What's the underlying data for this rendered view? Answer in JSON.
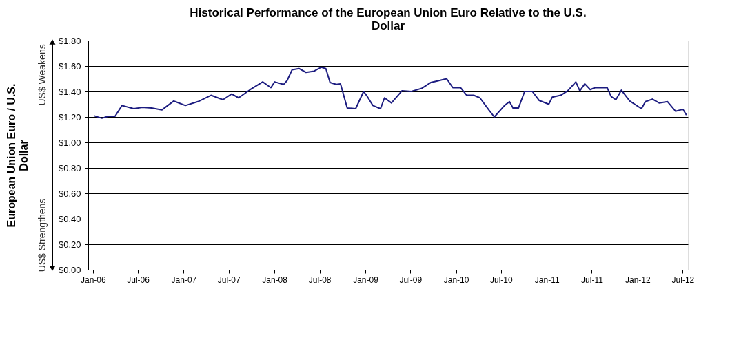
{
  "chart_data": {
    "type": "line",
    "title": "Historical Performance of the European Union Euro Relative to the U.S. Dollar",
    "ylabel": "European Union Euro / U.S. Dollar",
    "annotations": [
      "US$ Weakens",
      "US$ Strengthens"
    ],
    "x": [
      "2006-01-04",
      "2006-02-06",
      "2006-03-03",
      "2006-03-31",
      "2006-04-28",
      "2006-06-14",
      "2006-07-19",
      "2006-08-25",
      "2006-10-05",
      "2006-11-22",
      "2007-01-08",
      "2007-02-27",
      "2007-04-21",
      "2007-06-08",
      "2007-07-13",
      "2007-08-10",
      "2007-09-26",
      "2007-11-15",
      "2007-12-18",
      "2008-01-02",
      "2008-02-07",
      "2008-02-21",
      "2008-03-12",
      "2008-04-09",
      "2008-05-07",
      "2008-06-09",
      "2008-07-07",
      "2008-07-26",
      "2008-08-12",
      "2008-09-06",
      "2008-09-23",
      "2008-10-20",
      "2008-11-23",
      "2008-12-25",
      "2009-01-09",
      "2009-01-31",
      "2009-03-03",
      "2009-03-19",
      "2009-04-16",
      "2009-05-28",
      "2009-07-05",
      "2009-08-16",
      "2009-09-21",
      "2009-10-24",
      "2009-11-24",
      "2009-12-19",
      "2010-01-19",
      "2010-02-13",
      "2010-03-13",
      "2010-04-07",
      "2010-05-13",
      "2010-06-04",
      "2010-07-15",
      "2010-08-04",
      "2010-08-18",
      "2010-09-09",
      "2010-10-04",
      "2010-11-04",
      "2010-12-01",
      "2011-01-09",
      "2011-01-23",
      "2011-02-26",
      "2011-03-26",
      "2011-04-28",
      "2011-05-14",
      "2011-06-03",
      "2011-06-25",
      "2011-07-14",
      "2011-09-01",
      "2011-09-17",
      "2011-10-06",
      "2011-10-28",
      "2011-12-01",
      "2012-01-17",
      "2012-02-02",
      "2012-03-01",
      "2012-03-28",
      "2012-05-01",
      "2012-06-02",
      "2012-07-02",
      "2012-07-16"
    ],
    "series": [
      {
        "color": "#1c1c80",
        "values": [
          1.21,
          1.19,
          1.205,
          1.205,
          1.29,
          1.265,
          1.275,
          1.27,
          1.255,
          1.325,
          1.29,
          1.32,
          1.37,
          1.335,
          1.38,
          1.35,
          1.415,
          1.475,
          1.43,
          1.475,
          1.455,
          1.485,
          1.57,
          1.58,
          1.55,
          1.56,
          1.59,
          1.58,
          1.47,
          1.455,
          1.46,
          1.27,
          1.265,
          1.4,
          1.36,
          1.29,
          1.265,
          1.35,
          1.31,
          1.405,
          1.4,
          1.425,
          1.47,
          1.485,
          1.5,
          1.43,
          1.43,
          1.37,
          1.37,
          1.35,
          1.255,
          1.2,
          1.29,
          1.32,
          1.27,
          1.27,
          1.4,
          1.4,
          1.33,
          1.3,
          1.355,
          1.37,
          1.405,
          1.475,
          1.405,
          1.46,
          1.415,
          1.43,
          1.43,
          1.36,
          1.335,
          1.41,
          1.325,
          1.265,
          1.32,
          1.34,
          1.31,
          1.32,
          1.245,
          1.26,
          1.215
        ]
      }
    ],
    "xlim": [
      "2005-12-13",
      "2012-07-22"
    ],
    "xticks": [
      {
        "value": "2006-01-01",
        "label": "Jan-06"
      },
      {
        "value": "2006-07-01",
        "label": "Jul-06"
      },
      {
        "value": "2007-01-01",
        "label": "Jan-07"
      },
      {
        "value": "2007-07-01",
        "label": "Jul-07"
      },
      {
        "value": "2008-01-01",
        "label": "Jan-08"
      },
      {
        "value": "2008-07-01",
        "label": "Jul-08"
      },
      {
        "value": "2009-01-01",
        "label": "Jan-09"
      },
      {
        "value": "2009-07-01",
        "label": "Jul-09"
      },
      {
        "value": "2010-01-01",
        "label": "Jan-10"
      },
      {
        "value": "2010-07-01",
        "label": "Jul-10"
      },
      {
        "value": "2011-01-01",
        "label": "Jan-11"
      },
      {
        "value": "2011-07-01",
        "label": "Jul-11"
      },
      {
        "value": "2012-01-01",
        "label": "Jan-12"
      },
      {
        "value": "2012-07-01",
        "label": "Jul-12"
      }
    ],
    "ylim": [
      0,
      1.8
    ],
    "yticks": [
      {
        "value": 0,
        "label": "$0.00"
      },
      {
        "value": 0.2,
        "label": "$0.20"
      },
      {
        "value": 0.4,
        "label": "$0.40"
      },
      {
        "value": 0.6,
        "label": "$0.60"
      },
      {
        "value": 0.8,
        "label": "$0.80"
      },
      {
        "value": 1.0,
        "label": "$1.00"
      },
      {
        "value": 1.2,
        "label": "$1.20"
      },
      {
        "value": 1.4,
        "label": "$1.40"
      },
      {
        "value": 1.6,
        "label": "$1.60"
      },
      {
        "value": 1.8,
        "label": "$1.80"
      }
    ],
    "grid": "y",
    "legend": false,
    "marker": "none",
    "line_style": "solid"
  }
}
